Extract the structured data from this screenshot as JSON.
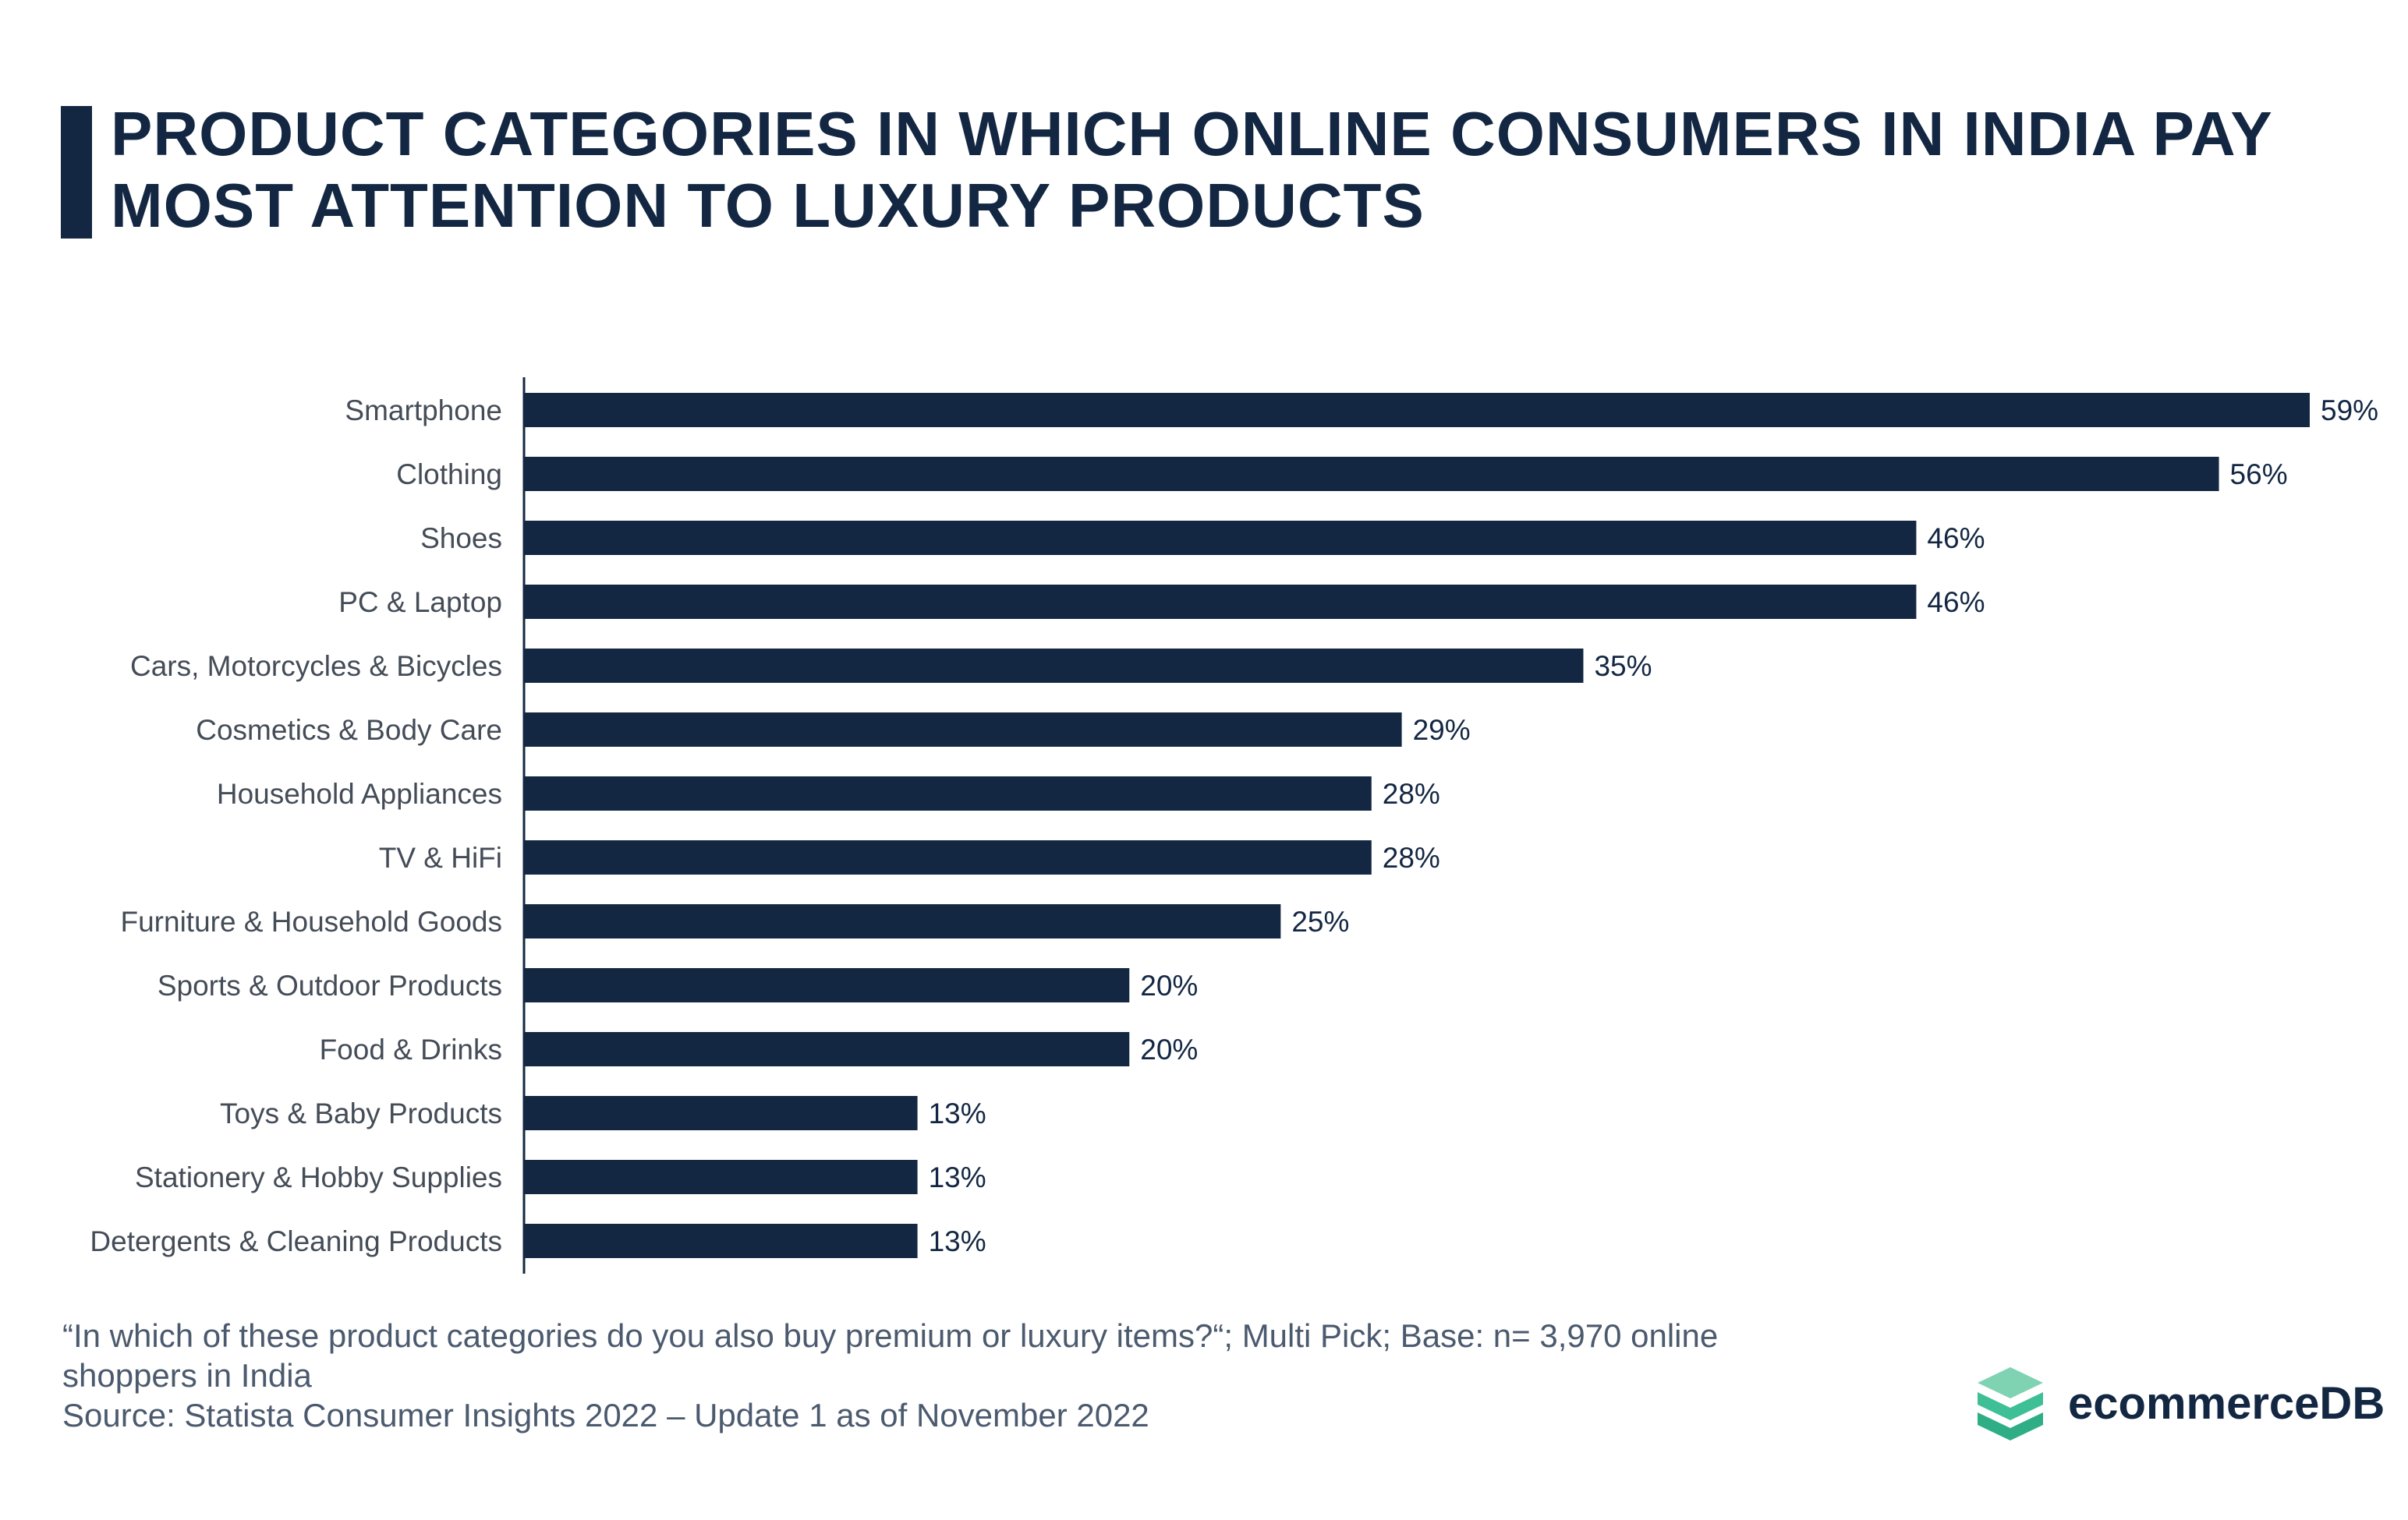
{
  "title": "PRODUCT CATEGORIES IN WHICH ONLINE CONSUMERS IN INDIA PAY MOST ATTENTION TO LUXURY PRODUCTS",
  "colors": {
    "bar": "#132743",
    "title": "#132743",
    "label": "#444c57",
    "footnote": "#4b5a6e",
    "logo_light": "#7fd3b3",
    "logo_dark": "#2fae86"
  },
  "chart_data": {
    "type": "bar",
    "orientation": "horizontal",
    "categories": [
      "Smartphone",
      "Clothing",
      "Shoes",
      "PC & Laptop",
      "Cars, Motorcycles & Bicycles",
      "Cosmetics & Body Care",
      "Household Appliances",
      "TV & HiFi",
      "Furniture & Household Goods",
      "Sports & Outdoor Products",
      "Food & Drinks",
      "Toys & Baby Products",
      "Stationery & Hobby Supplies",
      "Detergents & Cleaning Products"
    ],
    "values": [
      59,
      56,
      46,
      46,
      35,
      29,
      28,
      28,
      25,
      20,
      20,
      13,
      13,
      13
    ],
    "value_labels": [
      "59%",
      "56%",
      "46%",
      "46%",
      "35%",
      "29%",
      "28%",
      "28%",
      "25%",
      "20%",
      "20%",
      "13%",
      "13%",
      "13%"
    ],
    "xlim": [
      0,
      59
    ],
    "grid": false,
    "legend": "none"
  },
  "footnote": {
    "question": "“In which of these product categories do you also buy premium or luxury items?“; Multi Pick; Base: n= 3,970 online shoppers in India",
    "source": "Source: Statista Consumer Insights 2022 – Update 1 as of November 2022"
  },
  "logo": {
    "text": "ecommerceDB",
    "icon": "stacked-layers-icon"
  }
}
